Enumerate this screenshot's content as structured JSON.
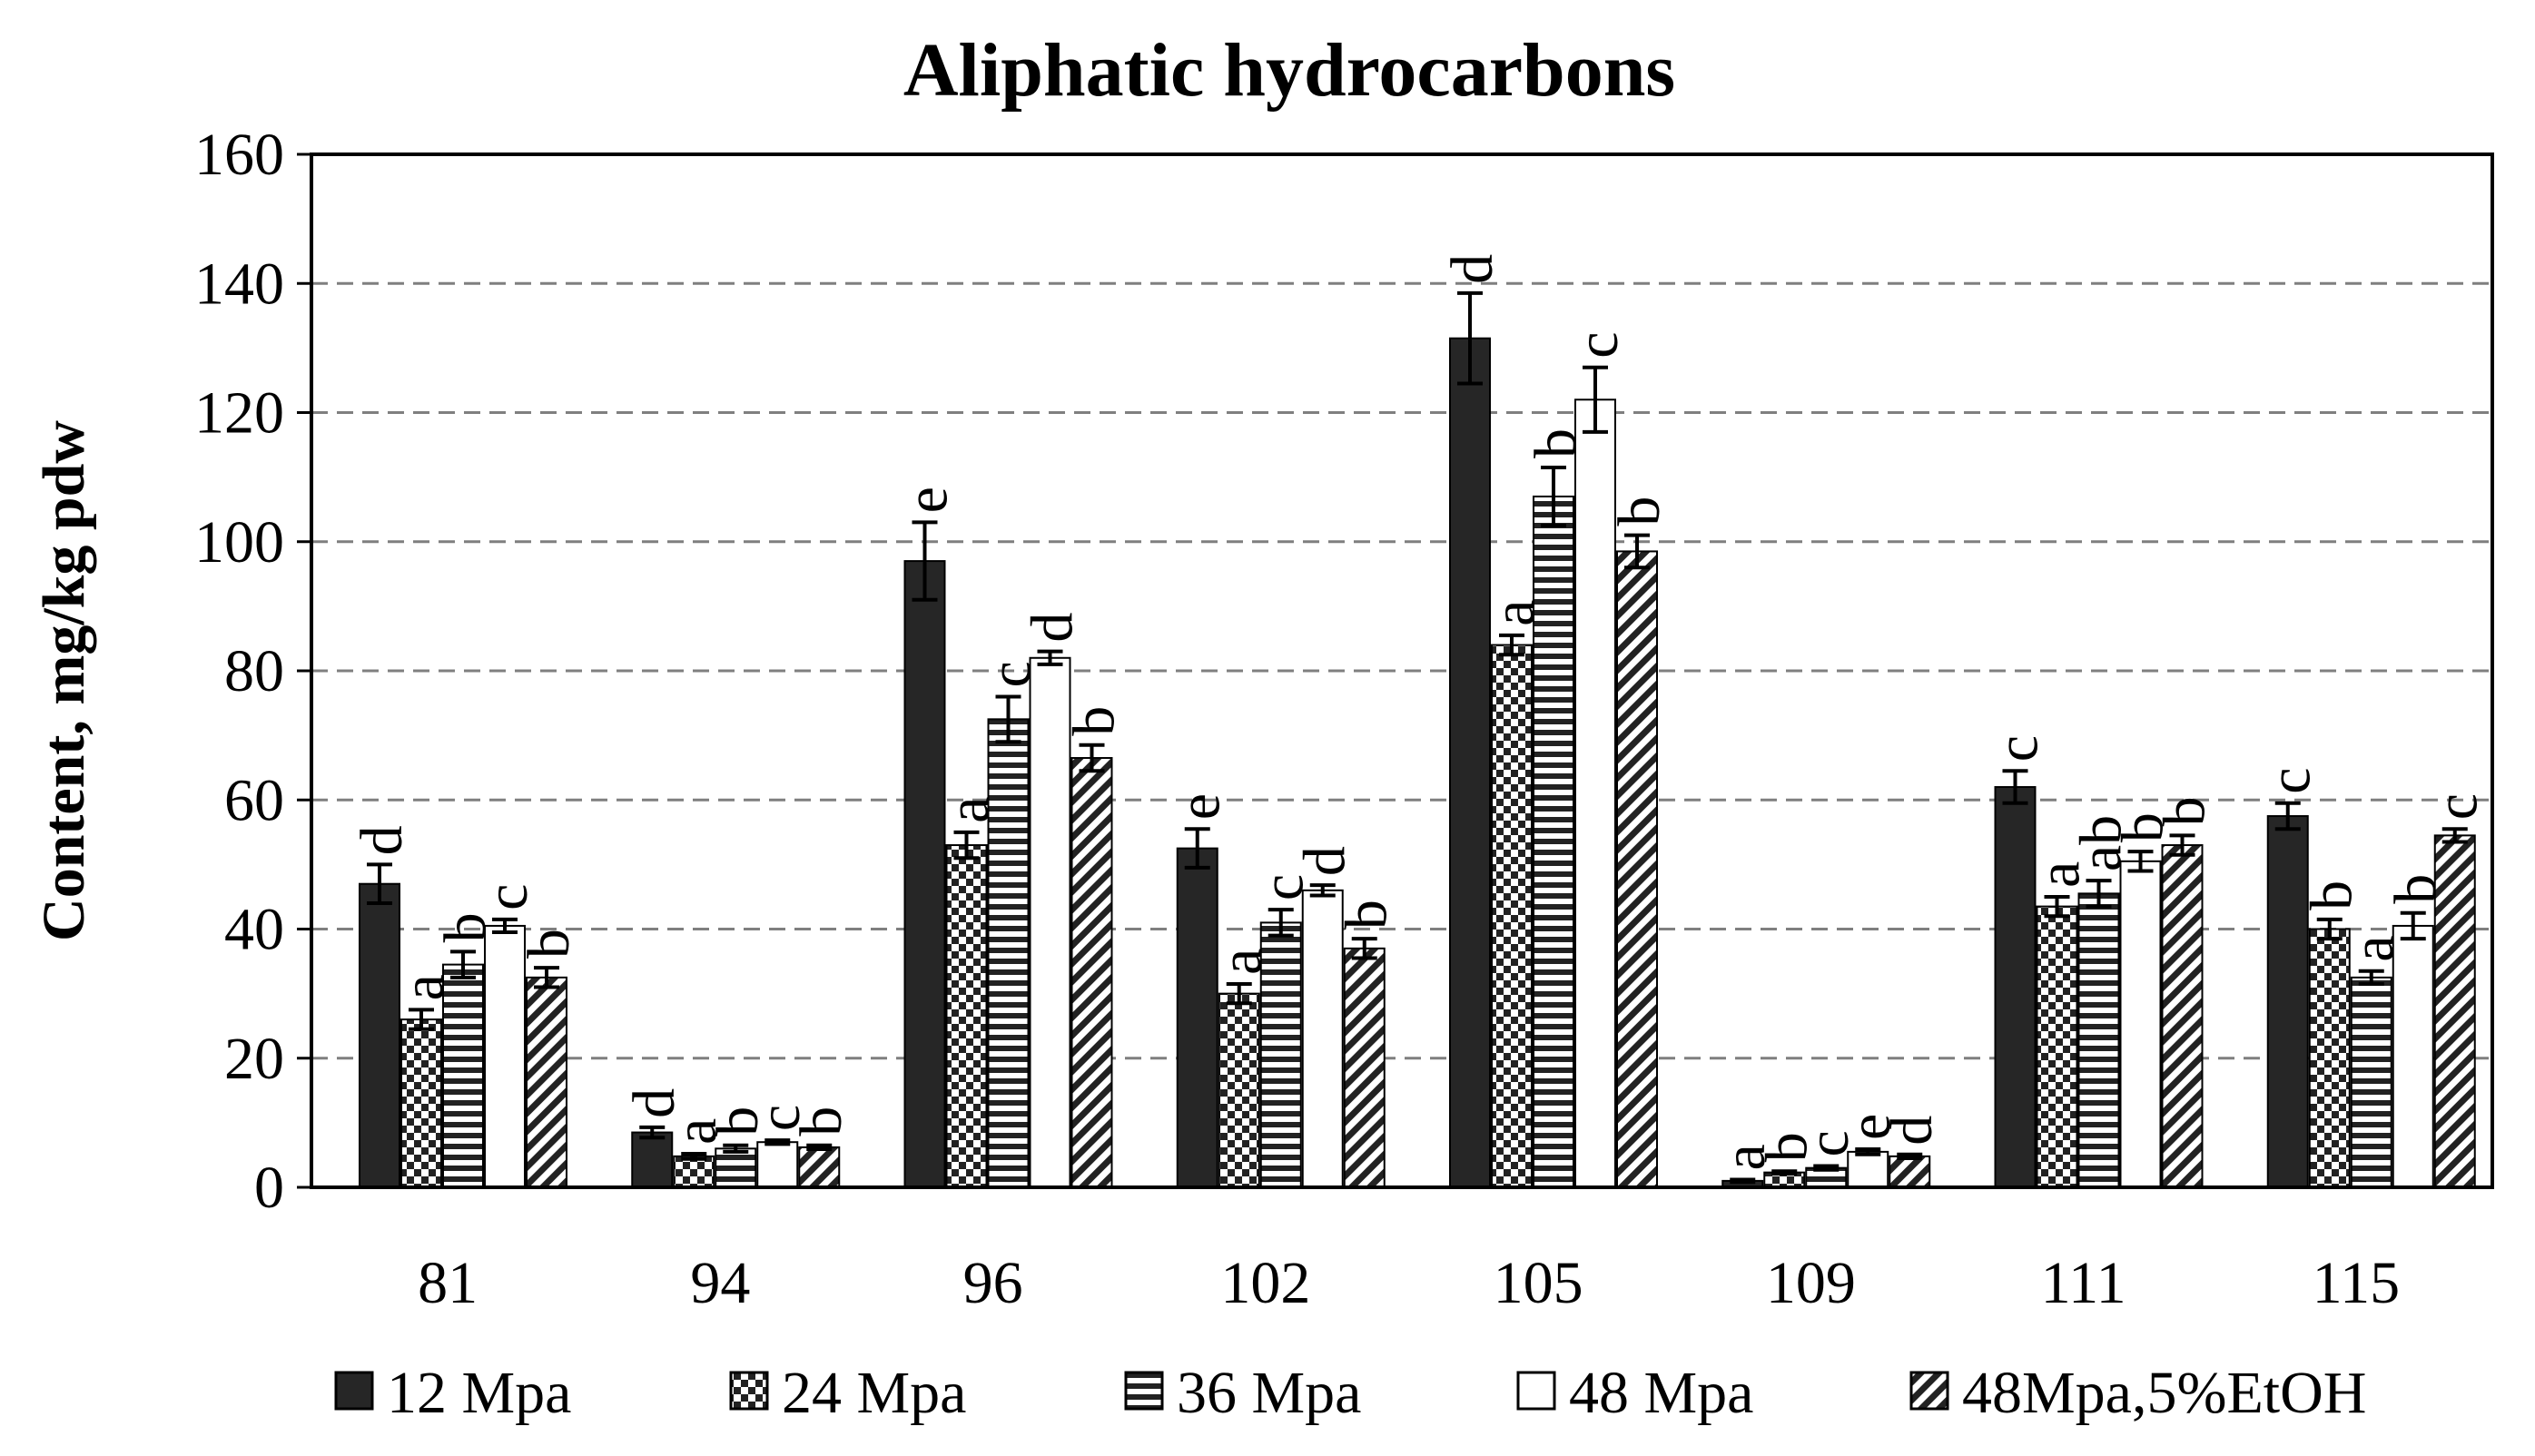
{
  "chart_data": {
    "type": "bar",
    "title": "Aliphatic hydrocarbons",
    "xlabel": "",
    "ylabel": "Content, mg/kg pdw",
    "ylim": [
      0,
      160
    ],
    "yticks": [
      0,
      20,
      40,
      60,
      80,
      100,
      120,
      140,
      160
    ],
    "grid": "horizontal dashed",
    "legend_position": "bottom",
    "categories": [
      "81",
      "94",
      "96",
      "102",
      "105",
      "109",
      "111",
      "115"
    ],
    "series": [
      {
        "name": "12 Mpa",
        "pattern": "solid-dark",
        "values": [
          47,
          8.5,
          97,
          52.5,
          131.5,
          1,
          62,
          57.5
        ],
        "errors": [
          3,
          0.8,
          6,
          3,
          7,
          0.2,
          2.5,
          2
        ],
        "letters": [
          "d",
          "d",
          "e",
          "e",
          "d",
          "a",
          "c",
          "c"
        ]
      },
      {
        "name": "24 Mpa",
        "pattern": "checker",
        "values": [
          26,
          4.8,
          53,
          30,
          84,
          2.3,
          43.5,
          40
        ],
        "errors": [
          1.5,
          0.4,
          2,
          1.5,
          1.5,
          0.2,
          1.5,
          1.5
        ],
        "letters": [
          "a",
          "a",
          "a",
          "a",
          "a",
          "b",
          "a",
          "b"
        ]
      },
      {
        "name": "36 Mpa",
        "pattern": "horizontal-lines",
        "values": [
          34.5,
          6,
          72.5,
          41,
          107,
          3,
          45.5,
          32.5
        ],
        "errors": [
          2,
          0.5,
          3.5,
          2,
          4.5,
          0.3,
          2,
          1
        ],
        "letters": [
          "b",
          "b",
          "c",
          "c",
          "b",
          "c",
          "ab",
          "a"
        ]
      },
      {
        "name": "48 Mpa",
        "pattern": "white",
        "values": [
          40.5,
          7,
          82,
          46,
          122,
          5.5,
          50.5,
          40.5
        ],
        "errors": [
          1,
          0.3,
          1,
          0.8,
          5,
          0.4,
          1.5,
          2
        ],
        "letters": [
          "c",
          "c",
          "d",
          "d",
          "c",
          "e",
          "b",
          "b"
        ]
      },
      {
        "name": "48Mpa,5%EtOH",
        "pattern": "diagonal",
        "values": [
          32.5,
          6.2,
          66.5,
          37,
          98.5,
          4.8,
          53,
          54.5
        ],
        "errors": [
          1.5,
          0.3,
          2,
          1.5,
          2.5,
          0.3,
          1.5,
          1
        ],
        "letters": [
          "b",
          "b",
          "b",
          "b",
          "b",
          "d",
          "b",
          "c"
        ]
      }
    ]
  }
}
